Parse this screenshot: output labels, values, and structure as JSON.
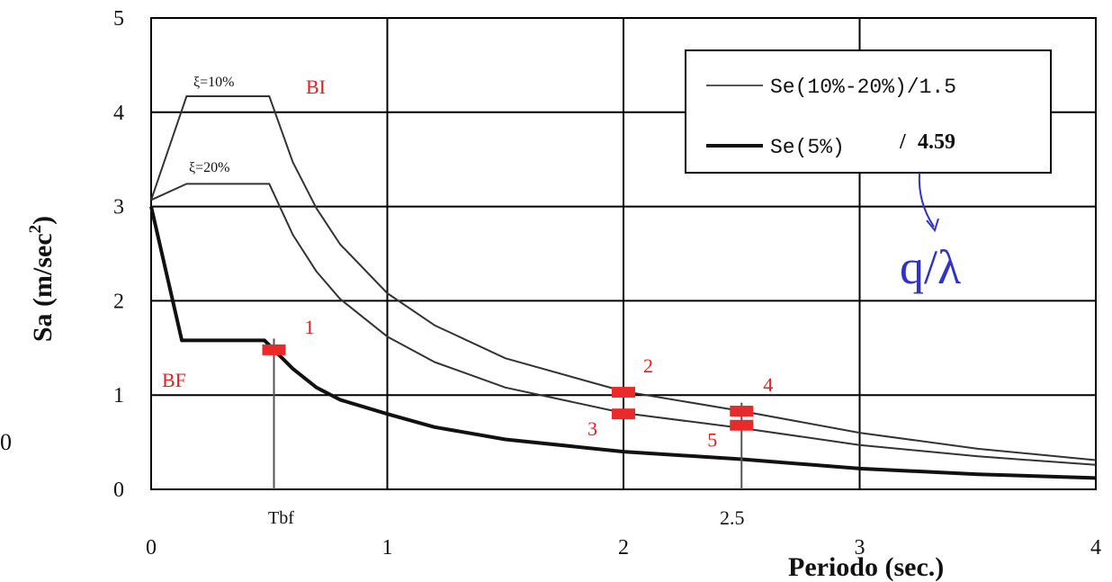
{
  "chart_data": {
    "type": "line",
    "title": "",
    "xlabel": "Periodo (sec.)",
    "ylabel": "Sa (m/sec2)",
    "ylabel_parts": {
      "main": "Sa (m/sec",
      "sup": "2",
      "close": ")"
    },
    "xlim": [
      0,
      4
    ],
    "ylim": [
      0,
      5
    ],
    "x_ticks": [
      "0",
      "1",
      "2",
      "3",
      "4"
    ],
    "y_ticks": [
      "0",
      "1",
      "2",
      "3",
      "4",
      "5"
    ],
    "grid": true,
    "legend_position": "top-right",
    "series": [
      {
        "name": "ξ=10%",
        "legend": "Se(10%-20%)/1.5",
        "style": "thin",
        "points": [
          [
            0,
            3.07
          ],
          [
            0.15,
            4.17
          ],
          [
            0.5,
            4.17
          ],
          [
            0.6,
            3.47
          ],
          [
            0.7,
            2.98
          ],
          [
            0.8,
            2.6
          ],
          [
            1.0,
            2.08
          ],
          [
            1.2,
            1.74
          ],
          [
            1.5,
            1.39
          ],
          [
            2.0,
            1.04
          ],
          [
            2.5,
            0.83
          ],
          [
            3.0,
            0.6
          ],
          [
            3.5,
            0.43
          ],
          [
            4.0,
            0.31
          ]
        ]
      },
      {
        "name": "ξ=20%",
        "legend": "Se(10%-20%)/1.5",
        "style": "thin",
        "points": [
          [
            0,
            3.07
          ],
          [
            0.15,
            3.24
          ],
          [
            0.5,
            3.24
          ],
          [
            0.6,
            2.7
          ],
          [
            0.7,
            2.31
          ],
          [
            0.8,
            2.02
          ],
          [
            1.0,
            1.62
          ],
          [
            1.2,
            1.35
          ],
          [
            1.5,
            1.08
          ],
          [
            2.0,
            0.81
          ],
          [
            2.5,
            0.65
          ],
          [
            3.0,
            0.47
          ],
          [
            3.5,
            0.35
          ],
          [
            4.0,
            0.26
          ]
        ]
      },
      {
        "name": "Se(5%)",
        "legend": "Se(5%)",
        "style": "thick",
        "points": [
          [
            0,
            3.0
          ],
          [
            0.13,
            1.58
          ],
          [
            0.48,
            1.58
          ],
          [
            0.6,
            1.28
          ],
          [
            0.7,
            1.08
          ],
          [
            0.8,
            0.95
          ],
          [
            1.0,
            0.8
          ],
          [
            1.2,
            0.66
          ],
          [
            1.5,
            0.53
          ],
          [
            2.0,
            0.4
          ],
          [
            2.5,
            0.32
          ],
          [
            3.0,
            0.22
          ],
          [
            3.5,
            0.16
          ],
          [
            4.0,
            0.12
          ]
        ]
      }
    ],
    "legend": {
      "thin_label": "Se(10%-20%)/1.5",
      "thick_label": "Se(5%)",
      "thick_suffix": "/",
      "thick_value": "4.59"
    },
    "annotations": {
      "xi10": "ξ=10%",
      "xi20": "ξ=20%",
      "bi": "BI",
      "bf": "BF",
      "tbf": "Tbf",
      "x25": "2.5",
      "q_lambda": "q/λ",
      "left_fragment": "0"
    },
    "markers": [
      {
        "label": "1",
        "x": 0.52,
        "y": 1.48
      },
      {
        "label": "2",
        "x": 2.0,
        "y": 1.03
      },
      {
        "label": "3",
        "x": 2.0,
        "y": 0.8
      },
      {
        "label": "4",
        "x": 2.5,
        "y": 0.83
      },
      {
        "label": "5",
        "x": 2.5,
        "y": 0.68
      }
    ],
    "verticals": [
      {
        "x": 0.52,
        "y_top": 1.6
      },
      {
        "x": 2.5,
        "y_top": 0.92
      }
    ],
    "colors": {
      "marker": "#e82a2a",
      "label_red": "#e02020",
      "blue": "#2f33c8",
      "grid": "#000000"
    }
  }
}
